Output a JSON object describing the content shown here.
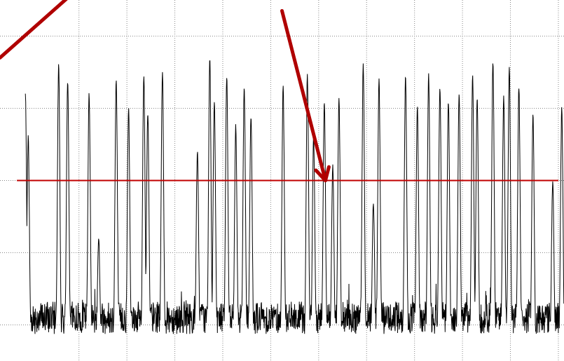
{
  "chart_data": {
    "type": "line",
    "title": "",
    "xlabel": "",
    "ylabel": "",
    "grid": true,
    "grid_style": "dotted",
    "y_grid_values": [
      0.1,
      0.3,
      0.5,
      0.7,
      0.9
    ],
    "xlim": [
      0,
      1000
    ],
    "ylim": [
      0,
      1
    ],
    "x_grid_values": [
      140,
      225,
      310,
      395,
      480,
      565,
      650,
      735,
      820,
      905,
      990
    ],
    "threshold": {
      "value": 0.5,
      "color": "#c00000"
    },
    "colors": {
      "series": "#000000",
      "threshold": "#c00000",
      "arrow": "#b00000",
      "grid": "#888888"
    },
    "annotations": [
      {
        "type": "arrow",
        "name": "left-arrow",
        "from": [
          130,
          1.02
        ],
        "to": [
          0,
          0.84
        ]
      },
      {
        "type": "arrow",
        "name": "center-arrow",
        "from": [
          500,
          0.97
        ],
        "to": [
          577,
          0.5
        ]
      }
    ],
    "series": [
      {
        "baseline": 0.12,
        "peaks": [
          [
            45,
            0.74
          ],
          [
            50,
            0.62
          ],
          [
            104,
            0.82
          ],
          [
            120,
            0.78
          ],
          [
            158,
            0.74
          ],
          [
            175,
            0.34
          ],
          [
            206,
            0.78
          ],
          [
            228,
            0.7
          ],
          [
            255,
            0.79
          ],
          [
            262,
            0.69
          ],
          [
            288,
            0.8
          ],
          [
            350,
            0.58
          ],
          [
            372,
            0.84
          ],
          [
            380,
            0.72
          ],
          [
            402,
            0.79
          ],
          [
            418,
            0.65
          ],
          [
            433,
            0.76
          ],
          [
            445,
            0.68
          ],
          [
            502,
            0.76
          ],
          [
            545,
            0.79
          ],
          [
            556,
            0.62
          ],
          [
            575,
            0.72
          ],
          [
            590,
            0.54
          ],
          [
            601,
            0.73
          ],
          [
            644,
            0.82
          ],
          [
            662,
            0.44
          ],
          [
            672,
            0.78
          ],
          [
            719,
            0.79
          ],
          [
            740,
            0.7
          ],
          [
            760,
            0.79
          ],
          [
            780,
            0.76
          ],
          [
            795,
            0.72
          ],
          [
            814,
            0.74
          ],
          [
            838,
            0.79
          ],
          [
            846,
            0.73
          ],
          [
            874,
            0.83
          ],
          [
            893,
            0.73
          ],
          [
            903,
            0.81
          ],
          [
            920,
            0.76
          ],
          [
            945,
            0.68
          ],
          [
            980,
            0.5
          ],
          [
            996,
            0.7
          ]
        ]
      }
    ]
  }
}
